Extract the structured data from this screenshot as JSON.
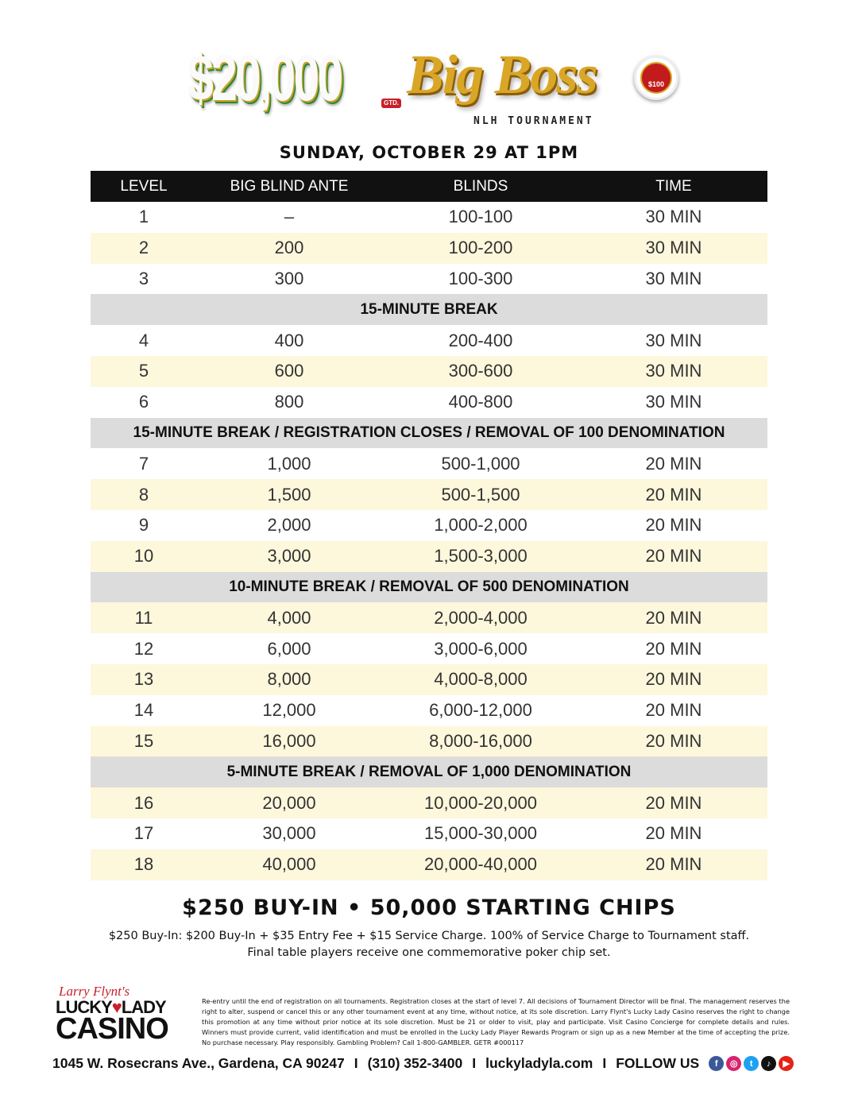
{
  "header": {
    "amount": "$20,000",
    "gtd": "GTD.",
    "title": "Big Boss",
    "chip_value": "$100",
    "subtitle": "NLH TOURNAMENT",
    "date": "SUNDAY, OCTOBER 29 AT 1PM"
  },
  "table": {
    "columns": [
      "LEVEL",
      "BIG BLIND ANTE",
      "BLINDS",
      "TIME"
    ],
    "rows": [
      {
        "type": "level",
        "level": "1",
        "ante": "–",
        "blinds": "100-100",
        "time": "30 MIN",
        "highlight": false
      },
      {
        "type": "level",
        "level": "2",
        "ante": "200",
        "blinds": "100-200",
        "time": "30 MIN",
        "highlight": true
      },
      {
        "type": "level",
        "level": "3",
        "ante": "300",
        "blinds": "100-300",
        "time": "30 MIN",
        "highlight": false
      },
      {
        "type": "break",
        "text": "15-MINUTE BREAK"
      },
      {
        "type": "level",
        "level": "4",
        "ante": "400",
        "blinds": "200-400",
        "time": "30 MIN",
        "highlight": false
      },
      {
        "type": "level",
        "level": "5",
        "ante": "600",
        "blinds": "300-600",
        "time": "30 MIN",
        "highlight": true
      },
      {
        "type": "level",
        "level": "6",
        "ante": "800",
        "blinds": "400-800",
        "time": "30 MIN",
        "highlight": false
      },
      {
        "type": "break",
        "text": "15-MINUTE BREAK / REGISTRATION CLOSES / REMOVAL OF 100 DENOMINATION"
      },
      {
        "type": "level",
        "level": "7",
        "ante": "1,000",
        "blinds": "500-1,000",
        "time": "20 MIN",
        "highlight": false
      },
      {
        "type": "level",
        "level": "8",
        "ante": "1,500",
        "blinds": "500-1,500",
        "time": "20 MIN",
        "highlight": true
      },
      {
        "type": "level",
        "level": "9",
        "ante": "2,000",
        "blinds": "1,000-2,000",
        "time": "20 MIN",
        "highlight": false
      },
      {
        "type": "level",
        "level": "10",
        "ante": "3,000",
        "blinds": "1,500-3,000",
        "time": "20 MIN",
        "highlight": true
      },
      {
        "type": "break",
        "text": "10-MINUTE BREAK / REMOVAL OF 500 DENOMINATION"
      },
      {
        "type": "level",
        "level": "11",
        "ante": "4,000",
        "blinds": "2,000-4,000",
        "time": "20 MIN",
        "highlight": true
      },
      {
        "type": "level",
        "level": "12",
        "ante": "6,000",
        "blinds": "3,000-6,000",
        "time": "20 MIN",
        "highlight": false
      },
      {
        "type": "level",
        "level": "13",
        "ante": "8,000",
        "blinds": "4,000-8,000",
        "time": "20 MIN",
        "highlight": true
      },
      {
        "type": "level",
        "level": "14",
        "ante": "12,000",
        "blinds": "6,000-12,000",
        "time": "20 MIN",
        "highlight": false
      },
      {
        "type": "level",
        "level": "15",
        "ante": "16,000",
        "blinds": "8,000-16,000",
        "time": "20 MIN",
        "highlight": true
      },
      {
        "type": "break",
        "text": "5-MINUTE BREAK / REMOVAL OF 1,000 DENOMINATION"
      },
      {
        "type": "level",
        "level": "16",
        "ante": "20,000",
        "blinds": "10,000-20,000",
        "time": "20 MIN",
        "highlight": true
      },
      {
        "type": "level",
        "level": "17",
        "ante": "30,000",
        "blinds": "15,000-30,000",
        "time": "20 MIN",
        "highlight": false
      },
      {
        "type": "level",
        "level": "18",
        "ante": "40,000",
        "blinds": "20,000-40,000",
        "time": "20 MIN",
        "highlight": true
      }
    ]
  },
  "buyin": {
    "headline": "$250 BUY-IN • 50,000 STARTING CHIPS",
    "line1": "$250 Buy-In: $200 Buy-In + $35 Entry Fee + $15 Service Charge. 100% of Service Charge to Tournament staff.",
    "line2": "Final table players receive one commemorative poker chip set."
  },
  "footer": {
    "logo": {
      "signature": "Larry Flynt's",
      "lucky": "LUCKY",
      "heart": "♥",
      "lady": "LADY",
      "casino": "CASINO"
    },
    "fine_print": "Re-entry until the end of registration on all tournaments. Registration closes at the start of level 7. All decisions of Tournament Director will be final. The management reserves the right to alter, suspend or cancel this or any other tournament event at any time, without notice, at its sole discretion. Larry Flynt's Lucky Lady Casino reserves the right to change this promotion at any time without prior notice at its sole discretion. Must be 21 or older to visit, play and participate. Visit Casino Concierge for complete details and rules. Winners must provide current, valid identification and must be enrolled in the Lucky Lady Player Rewards Program or sign up as a new Member at the time of accepting the prize. No purchase necessary. Play responsibly. Gambling Problem? Call 1-800-GAMBLER. GETR #000117",
    "address": "1045 W. Rosecrans Ave., Gardena, CA 90247",
    "phone": "(310) 352-3400",
    "website": "luckyladyla.com",
    "follow": "FOLLOW US",
    "separator": "I",
    "social": [
      {
        "name": "facebook",
        "glyph": "f",
        "color": "#3b5998"
      },
      {
        "name": "instagram",
        "glyph": "◎",
        "color": "#d6246e"
      },
      {
        "name": "twitter",
        "glyph": "t",
        "color": "#1da1f2"
      },
      {
        "name": "tiktok",
        "glyph": "♪",
        "color": "#111111"
      },
      {
        "name": "youtube",
        "glyph": "▶",
        "color": "#e62117"
      }
    ]
  }
}
